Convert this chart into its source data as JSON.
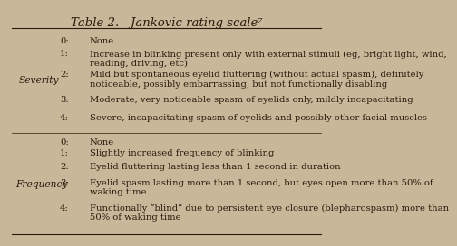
{
  "title": "Table 2.   Jankovic rating scale⁷",
  "background_color": "#c8b89a",
  "text_color": "#2a1a0a",
  "title_fontsize": 9.5,
  "body_fontsize": 7.2,
  "severity_label": "Severity",
  "frequency_label": "Frequency",
  "severity_rows": [
    {
      "num": "0:",
      "text": "None"
    },
    {
      "num": "1:",
      "text": "Increase in blinking present only with external stimuli (eg, bright light, wind,\nreading, driving, etc)"
    },
    {
      "num": "2:",
      "text": "Mild but spontaneous eyelid fluttering (without actual spasm), definitely\nnoticeable, possibly embarrassing, but not functionally disabling"
    },
    {
      "num": "3:",
      "text": "Moderate, very noticeable spasm of eyelids only, mildly incapacitating"
    },
    {
      "num": "4:",
      "text": "Severe, incapacitating spasm of eyelids and possibly other facial muscles"
    }
  ],
  "frequency_rows": [
    {
      "num": "0:",
      "text": "None"
    },
    {
      "num": "1:",
      "text": "Slightly increased frequency of blinking"
    },
    {
      "num": "2:",
      "text": "Eyelid fluttering lasting less than 1 second in duration"
    },
    {
      "num": "3:",
      "text": "Eyelid spasm lasting more than 1 second, but eyes open more than 50% of\nwaking time"
    },
    {
      "num": "4:",
      "text": "Functionally “blind” due to persistent eye closure (blepharospasm) more than\n50% of waking time"
    }
  ]
}
